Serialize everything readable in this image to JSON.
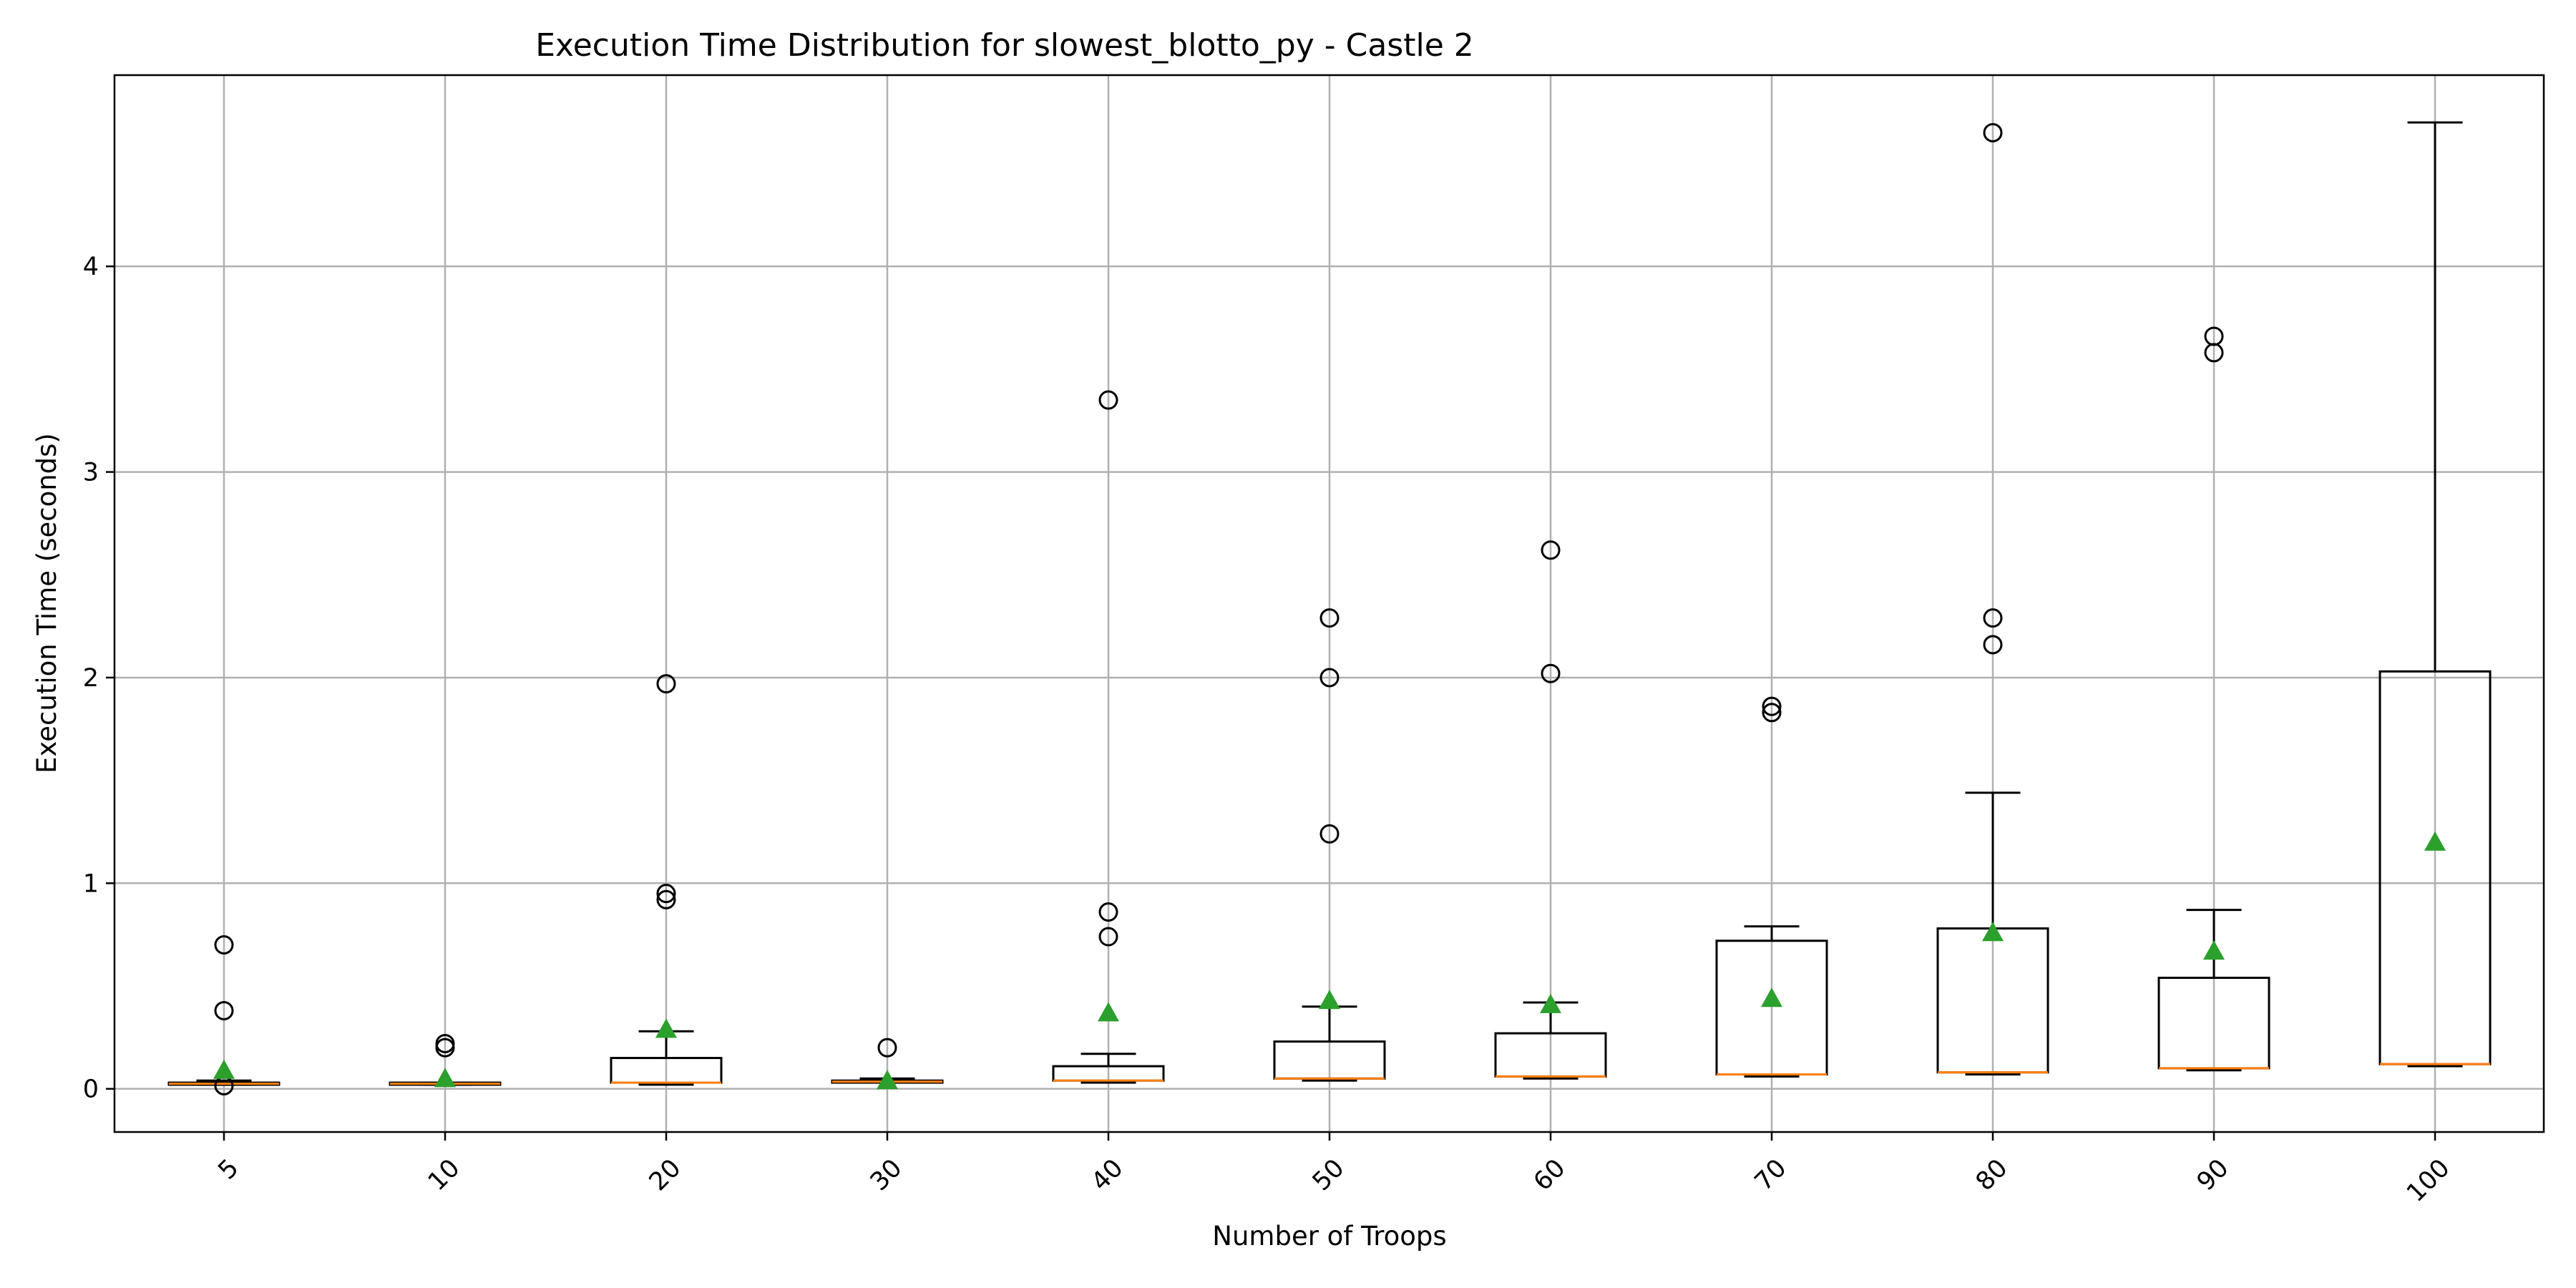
{
  "chart_data": {
    "type": "box",
    "title": "Execution Time Distribution for slowest_blotto_py - Castle 2",
    "xlabel": "Number of Troops",
    "ylabel": "Execution Time (seconds)",
    "ylim": [
      -0.21,
      4.93
    ],
    "yticks": [
      0,
      1,
      2,
      3,
      4
    ],
    "grid": true,
    "legend": "none",
    "colors": {
      "median": "#ff7f0e",
      "mean": "#2ca02c",
      "grid": "#b0b0b0",
      "box": "#000000"
    },
    "categories": [
      "5",
      "10",
      "20",
      "30",
      "40",
      "50",
      "60",
      "70",
      "80",
      "90",
      "100"
    ],
    "boxes": [
      {
        "category": "5",
        "whisker_low": 0.02,
        "q1": 0.02,
        "median": 0.025,
        "q3": 0.03,
        "whisker_high": 0.04,
        "mean": 0.09,
        "fliers": [
          0.7,
          0.38,
          0.015
        ]
      },
      {
        "category": "10",
        "whisker_low": 0.02,
        "q1": 0.02,
        "median": 0.025,
        "q3": 0.03,
        "whisker_high": 0.03,
        "mean": 0.05,
        "fliers": [
          0.22,
          0.2
        ]
      },
      {
        "category": "20",
        "whisker_low": 0.02,
        "q1": 0.03,
        "median": 0.03,
        "q3": 0.15,
        "whisker_high": 0.28,
        "mean": 0.29,
        "fliers": [
          1.97,
          0.95,
          0.92
        ]
      },
      {
        "category": "30",
        "whisker_low": 0.03,
        "q1": 0.03,
        "median": 0.035,
        "q3": 0.04,
        "whisker_high": 0.05,
        "mean": 0.04,
        "fliers": [
          0.2
        ]
      },
      {
        "category": "40",
        "whisker_low": 0.03,
        "q1": 0.04,
        "median": 0.04,
        "q3": 0.11,
        "whisker_high": 0.17,
        "mean": 0.37,
        "fliers": [
          3.35,
          0.86,
          0.74
        ]
      },
      {
        "category": "50",
        "whisker_low": 0.04,
        "q1": 0.05,
        "median": 0.05,
        "q3": 0.23,
        "whisker_high": 0.4,
        "mean": 0.43,
        "fliers": [
          2.29,
          2.0,
          1.24
        ]
      },
      {
        "category": "60",
        "whisker_low": 0.05,
        "q1": 0.06,
        "median": 0.06,
        "q3": 0.27,
        "whisker_high": 0.42,
        "mean": 0.41,
        "fliers": [
          2.62,
          2.02
        ]
      },
      {
        "category": "70",
        "whisker_low": 0.06,
        "q1": 0.07,
        "median": 0.07,
        "q3": 0.72,
        "whisker_high": 0.79,
        "mean": 0.44,
        "fliers": [
          1.86,
          1.83
        ]
      },
      {
        "category": "80",
        "whisker_low": 0.07,
        "q1": 0.08,
        "median": 0.08,
        "q3": 0.78,
        "whisker_high": 1.44,
        "mean": 0.76,
        "fliers": [
          4.65,
          2.29,
          2.16
        ]
      },
      {
        "category": "90",
        "whisker_low": 0.09,
        "q1": 0.1,
        "median": 0.1,
        "q3": 0.54,
        "whisker_high": 0.87,
        "mean": 0.67,
        "fliers": [
          3.66,
          3.58
        ]
      },
      {
        "category": "100",
        "whisker_low": 0.11,
        "q1": 0.12,
        "median": 0.12,
        "q3": 2.03,
        "whisker_high": 4.7,
        "mean": 1.2,
        "fliers": []
      }
    ]
  }
}
